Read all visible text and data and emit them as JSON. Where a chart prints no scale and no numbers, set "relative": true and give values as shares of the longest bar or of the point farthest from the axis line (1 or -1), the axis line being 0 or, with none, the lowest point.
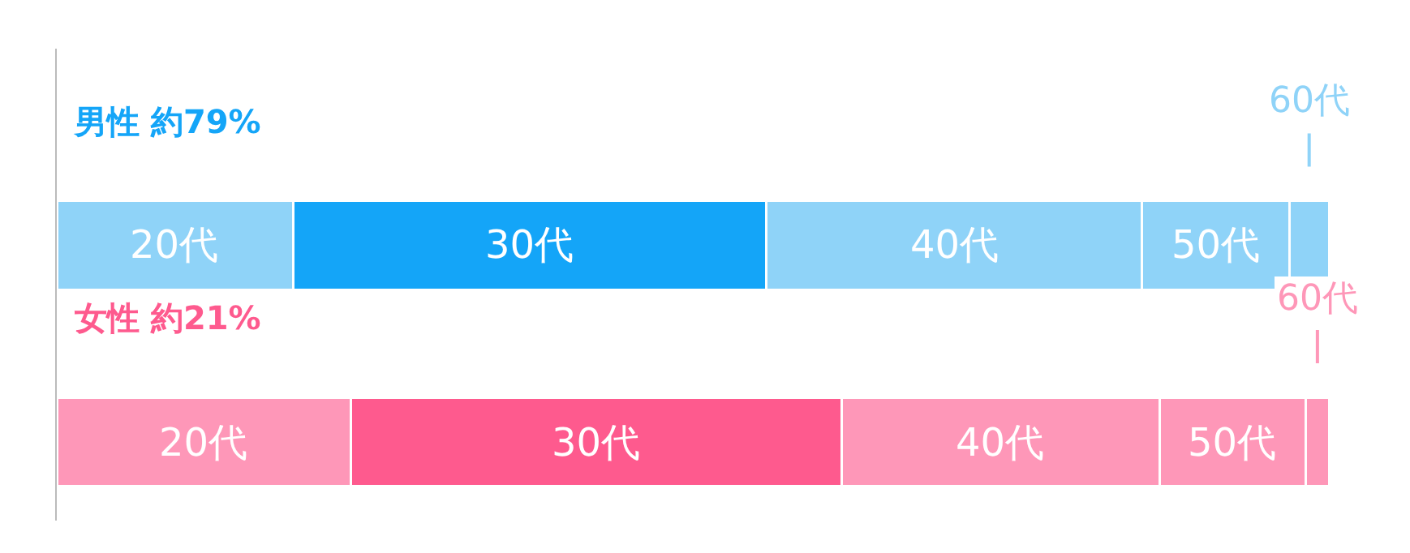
{
  "chart_data": {
    "type": "bar",
    "orientation": "horizontal",
    "stacked": true,
    "relative": true,
    "categories": [
      "男性 約79%",
      "女性 約21%"
    ],
    "series": [
      {
        "name": "20代",
        "colors": [
          "#8fd3f8",
          "#fe97b8"
        ],
        "values": [
          0.186,
          0.231
        ]
      },
      {
        "name": "30代",
        "colors": [
          "#14a5f8",
          "#fe5a8e"
        ],
        "values": [
          0.372,
          0.386
        ]
      },
      {
        "name": "40代",
        "colors": [
          "#8fd3f8",
          "#fe97b8"
        ],
        "values": [
          0.295,
          0.25
        ]
      },
      {
        "name": "50代",
        "colors": [
          "#8fd3f8",
          "#fe97b8"
        ],
        "values": [
          0.116,
          0.115
        ]
      },
      {
        "name": "60代",
        "colors": [
          "#8fd3f8",
          "#fe97b8"
        ],
        "values": [
          0.031,
          0.018
        ]
      }
    ],
    "legend": false
  }
}
